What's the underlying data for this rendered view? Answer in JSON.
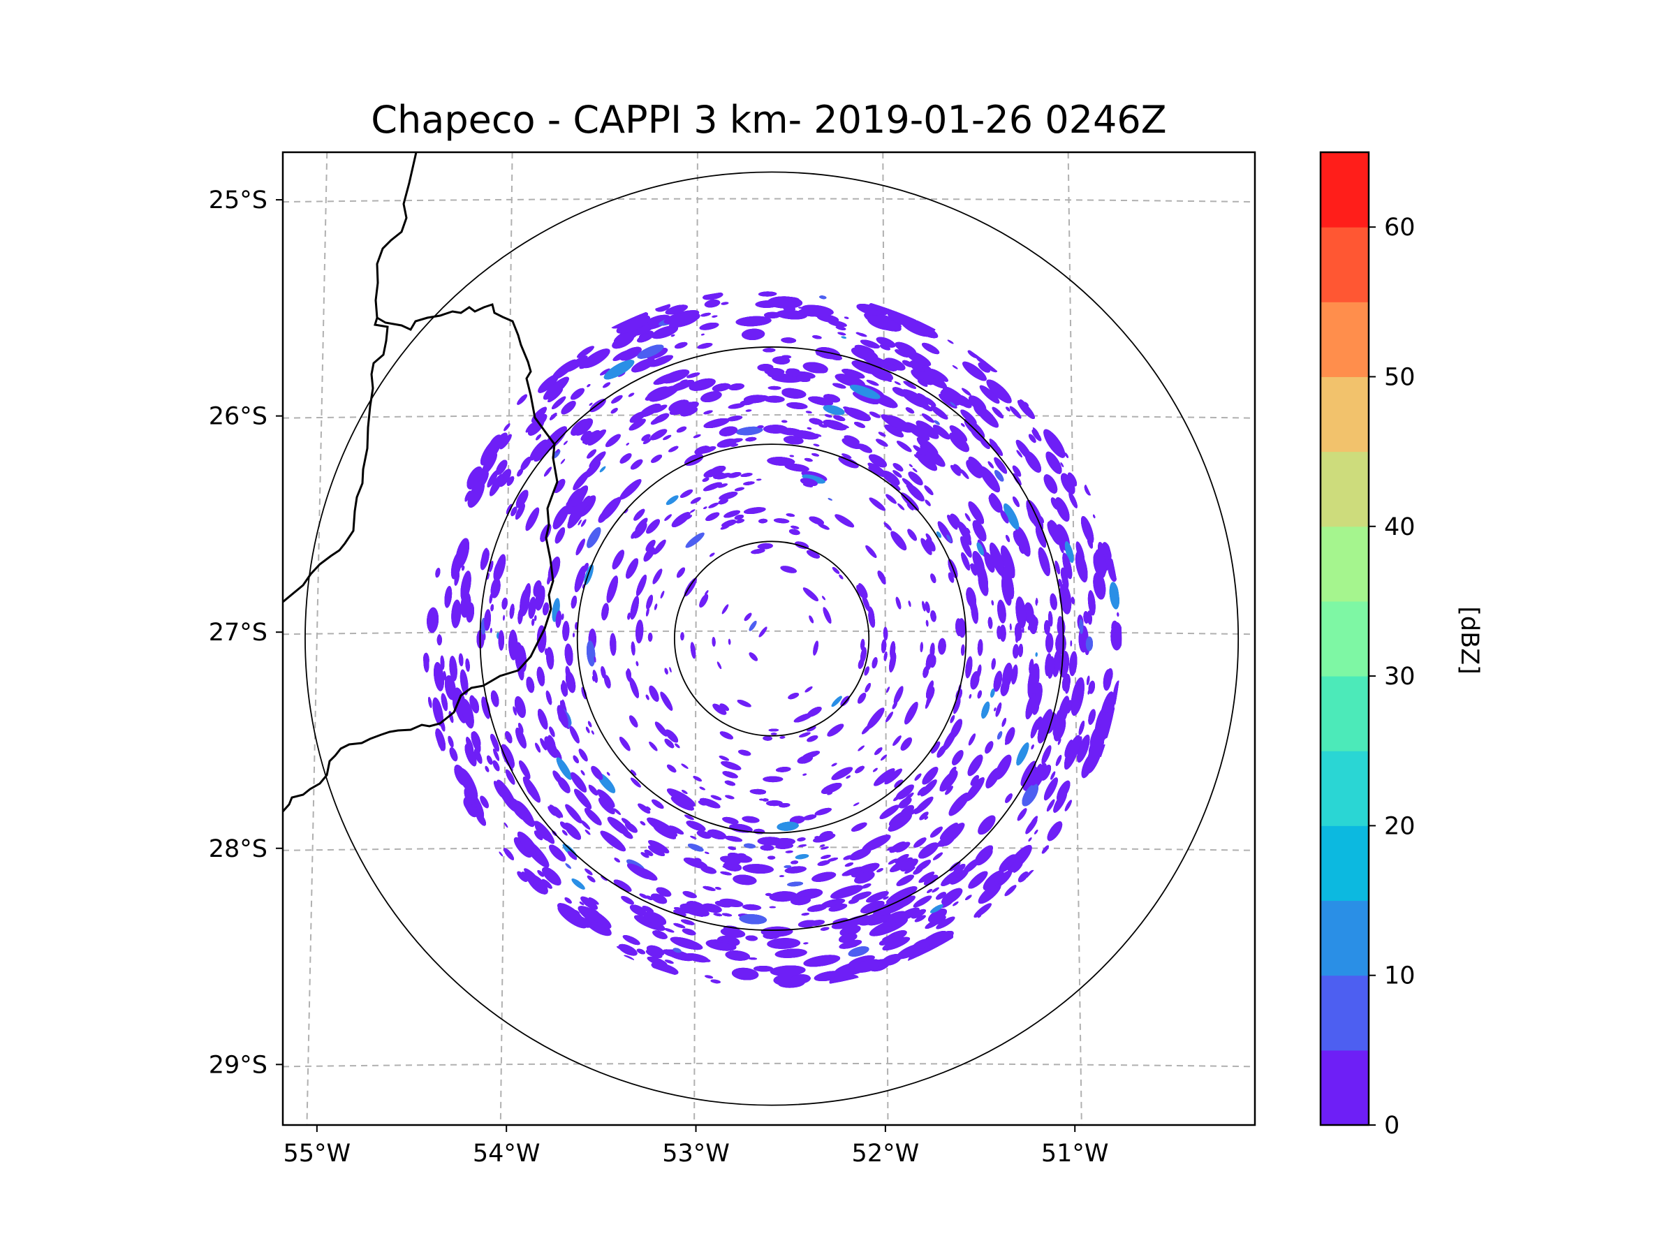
{
  "chart_data": {
    "type": "heatmap",
    "title": "Chapeco - CAPPI 3 km- 2019-01-26 0246Z",
    "xlabel": "",
    "ylabel": "",
    "x_tick_labels": [
      "55°W",
      "54°W",
      "53°W",
      "52°W",
      "51°W"
    ],
    "x_ticks": [
      -55,
      -54,
      -53,
      -52,
      -51
    ],
    "y_tick_labels": [
      "25°S",
      "26°S",
      "27°S",
      "28°S",
      "29°S"
    ],
    "y_ticks": [
      -25,
      -26,
      -27,
      -28,
      -29
    ],
    "xlim": [
      -55.18,
      -50.05
    ],
    "ylim": [
      -29.28,
      -24.78
    ],
    "grid": true,
    "radar_center": {
      "lon": -52.6,
      "lat": -27.03
    },
    "range_rings_km": [
      50,
      100,
      150,
      240
    ],
    "data_coverage_km": 180,
    "dominant_reflectivity_dbz": [
      0,
      5
    ],
    "colorbar": {
      "label": "[dBZ]",
      "vmin": 0,
      "vmax": 65,
      "step": 5,
      "tick_values": [
        0,
        10,
        20,
        30,
        40,
        50,
        60
      ],
      "tick_labels": [
        "0",
        "10",
        "20",
        "30",
        "40",
        "50",
        "60"
      ],
      "colors": [
        "#6e1ff6",
        "#4d5ff1",
        "#2a8fe6",
        "#0cb9e0",
        "#2ad6d4",
        "#4ceab9",
        "#7ef7a4",
        "#a5f58e",
        "#cddc7c",
        "#f2c26c",
        "#ff8e4c",
        "#ff5733",
        "#ff1e1a"
      ]
    },
    "borders": "state boundaries (black lines, west side)"
  }
}
